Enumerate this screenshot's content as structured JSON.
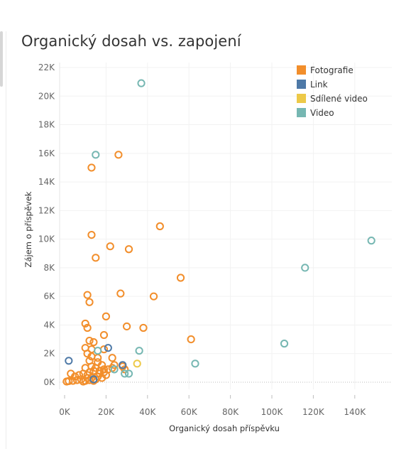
{
  "chart_data": {
    "type": "scatter",
    "title": "Organický dosah vs. zapojení",
    "xlabel": "Organický dosah příspěvku",
    "ylabel": "Zájem o příspěvek",
    "xlim": [
      0,
      152000
    ],
    "ylim": [
      0,
      22000
    ],
    "x_ticks": [
      0,
      20000,
      40000,
      60000,
      80000,
      100000,
      120000,
      140000
    ],
    "x_tick_labels": [
      "0K",
      "20K",
      "40K",
      "60K",
      "80K",
      "100K",
      "120K",
      "140K"
    ],
    "y_ticks": [
      0,
      2000,
      4000,
      6000,
      8000,
      10000,
      12000,
      14000,
      16000,
      18000,
      20000,
      22000
    ],
    "y_tick_labels": [
      "0K",
      "2K",
      "4K",
      "6K",
      "8K",
      "10K",
      "12K",
      "14K",
      "16K",
      "18K",
      "20K",
      "22K"
    ],
    "grid": true,
    "legend_position": "top-right",
    "series": [
      {
        "name": "Fotografie",
        "color": "#f28e2b",
        "points": [
          [
            26000,
            15900
          ],
          [
            13000,
            15000
          ],
          [
            46000,
            10900
          ],
          [
            13000,
            10300
          ],
          [
            22000,
            9500
          ],
          [
            31000,
            9300
          ],
          [
            15000,
            8700
          ],
          [
            56000,
            7300
          ],
          [
            27000,
            6200
          ],
          [
            43000,
            6000
          ],
          [
            11000,
            6100
          ],
          [
            12000,
            5600
          ],
          [
            20000,
            4600
          ],
          [
            10000,
            4100
          ],
          [
            11000,
            3800
          ],
          [
            30000,
            3900
          ],
          [
            38000,
            3800
          ],
          [
            19000,
            3300
          ],
          [
            12000,
            2900
          ],
          [
            14000,
            2800
          ],
          [
            61000,
            3000
          ],
          [
            10000,
            2400
          ],
          [
            13000,
            2300
          ],
          [
            19000,
            2300
          ],
          [
            11000,
            2000
          ],
          [
            13000,
            1800
          ],
          [
            23000,
            1700
          ],
          [
            16000,
            1700
          ],
          [
            12000,
            1500
          ],
          [
            16000,
            1400
          ],
          [
            24000,
            1200
          ],
          [
            28000,
            1100
          ],
          [
            23000,
            1000
          ],
          [
            29000,
            900
          ],
          [
            19000,
            900
          ],
          [
            10000,
            1000
          ],
          [
            13000,
            1100
          ],
          [
            15000,
            1000
          ],
          [
            18000,
            1200
          ],
          [
            21000,
            900
          ],
          [
            14000,
            800
          ],
          [
            12000,
            700
          ],
          [
            17000,
            600
          ],
          [
            3000,
            600
          ],
          [
            5000,
            400
          ],
          [
            7000,
            500
          ],
          [
            9000,
            600
          ],
          [
            11000,
            500
          ],
          [
            20000,
            500
          ],
          [
            16000,
            400
          ],
          [
            18000,
            300
          ],
          [
            13000,
            300
          ],
          [
            15000,
            200
          ],
          [
            8000,
            200
          ],
          [
            6000,
            150
          ],
          [
            4000,
            100
          ],
          [
            2000,
            80
          ],
          [
            1000,
            50
          ],
          [
            10000,
            100
          ],
          [
            12000,
            150
          ],
          [
            14000,
            100
          ],
          [
            9000,
            50
          ],
          [
            11000,
            300
          ],
          [
            17000,
            800
          ],
          [
            19000,
            700
          ]
        ]
      },
      {
        "name": "Link",
        "color": "#4e79a7",
        "points": [
          [
            2000,
            1500
          ],
          [
            21000,
            2400
          ],
          [
            28000,
            1200
          ],
          [
            14000,
            200
          ]
        ]
      },
      {
        "name": "Sdílené video",
        "color": "#edc948",
        "points": [
          [
            35000,
            1300
          ]
        ]
      },
      {
        "name": "Video",
        "color": "#76b7b2",
        "points": [
          [
            37000,
            20900
          ],
          [
            15000,
            15900
          ],
          [
            148000,
            9900
          ],
          [
            116000,
            8000
          ],
          [
            106000,
            2700
          ],
          [
            36000,
            2200
          ],
          [
            63000,
            1300
          ],
          [
            16000,
            2200
          ],
          [
            29000,
            600
          ],
          [
            31000,
            600
          ],
          [
            24000,
            900
          ]
        ]
      }
    ]
  }
}
